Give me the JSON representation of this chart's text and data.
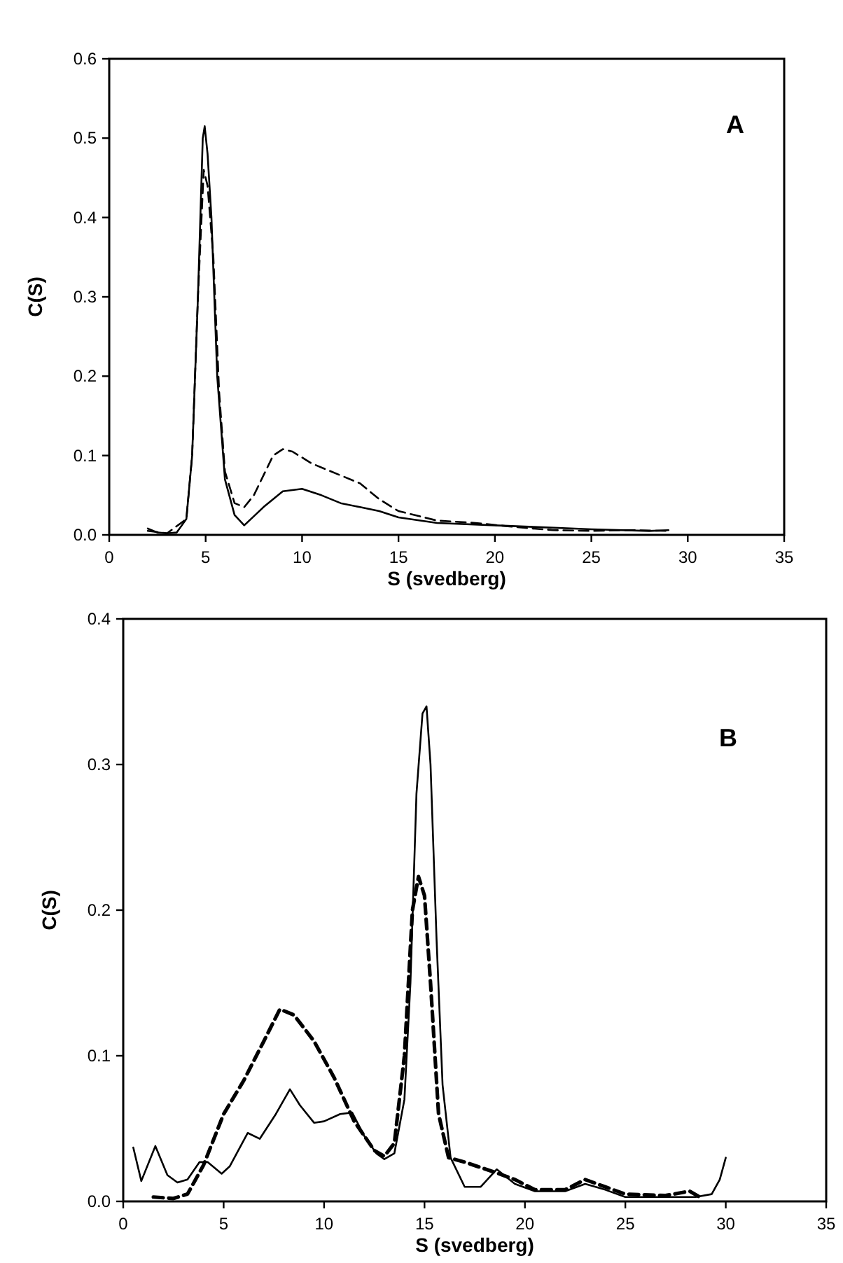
{
  "chart_data": [
    {
      "type": "line",
      "xlabel": "S (svedberg)",
      "ylabel": "C(S)",
      "annotations": [
        "A"
      ],
      "xlim": [
        0,
        35
      ],
      "ylim": [
        0,
        0.6
      ],
      "xticks": [
        0,
        5,
        10,
        15,
        20,
        25,
        30,
        35
      ],
      "yticks": [
        {
          "value": 0,
          "label": "0.0"
        },
        0.1,
        0.2,
        0.3,
        0.4,
        0.5,
        0.6
      ],
      "grid": false,
      "marker": "none",
      "series": [
        {
          "color": "#000000",
          "line_style": "solid",
          "x": [
            2,
            2.5,
            3,
            3.5,
            4,
            4.3,
            4.6,
            4.85,
            4.95,
            5.1,
            5.3,
            5.6,
            6,
            6.5,
            7,
            8,
            9,
            10,
            11,
            12,
            13,
            14,
            15,
            17,
            20,
            22,
            25,
            28,
            29
          ],
          "values": [
            0.008,
            0.003,
            0.002,
            0.003,
            0.02,
            0.1,
            0.3,
            0.5,
            0.515,
            0.48,
            0.4,
            0.2,
            0.07,
            0.025,
            0.012,
            0.035,
            0.055,
            0.058,
            0.05,
            0.04,
            0.035,
            0.03,
            0.022,
            0.015,
            0.012,
            0.01,
            0.007,
            0.005,
            0.006
          ]
        },
        {
          "color": "#000000",
          "line_style": "dashed",
          "x": [
            2,
            3,
            4,
            4.3,
            4.6,
            4.9,
            5.1,
            5.4,
            5.7,
            6,
            6.5,
            7,
            7.5,
            8.5,
            9,
            9.5,
            10.5,
            12,
            13,
            14,
            15,
            17,
            19,
            21,
            23,
            25,
            27,
            29
          ],
          "values": [
            0.005,
            0.002,
            0.02,
            0.1,
            0.3,
            0.46,
            0.44,
            0.35,
            0.18,
            0.08,
            0.04,
            0.035,
            0.05,
            0.1,
            0.108,
            0.105,
            0.09,
            0.075,
            0.065,
            0.045,
            0.03,
            0.018,
            0.015,
            0.01,
            0.006,
            0.005,
            0.006,
            0.005
          ]
        }
      ]
    },
    {
      "type": "line",
      "xlabel": "S (svedberg)",
      "ylabel": "C(S)",
      "annotations": [
        "B"
      ],
      "xlim": [
        0,
        35
      ],
      "ylim": [
        0,
        0.4
      ],
      "xticks": [
        0,
        5,
        10,
        15,
        20,
        25,
        30,
        35
      ],
      "yticks": [
        {
          "value": 0,
          "label": "0.0"
        },
        0.1,
        0.2,
        0.3,
        0.4
      ],
      "grid": false,
      "marker": "none",
      "series": [
        {
          "color": "#000000",
          "line_style": "solid",
          "x": [
            0.5,
            0.9,
            1.6,
            2.2,
            2.7,
            3.2,
            3.8,
            4.2,
            4.9,
            5.3,
            6.2,
            6.8,
            7.6,
            8.3,
            8.8,
            9.5,
            10,
            10.8,
            11.4,
            12,
            12.6,
            13,
            13.5,
            14,
            14.3,
            14.6,
            14.9,
            15.1,
            15.3,
            15.6,
            15.9,
            16.3,
            17,
            17.8,
            18.6,
            19.5,
            20.5,
            22,
            23,
            24,
            25,
            27,
            28.5,
            29.3,
            29.7,
            30
          ],
          "values": [
            0.037,
            0.014,
            0.038,
            0.018,
            0.013,
            0.015,
            0.027,
            0.027,
            0.019,
            0.024,
            0.047,
            0.043,
            0.06,
            0.077,
            0.066,
            0.054,
            0.055,
            0.06,
            0.061,
            0.045,
            0.033,
            0.029,
            0.033,
            0.07,
            0.15,
            0.28,
            0.335,
            0.34,
            0.3,
            0.18,
            0.08,
            0.03,
            0.01,
            0.01,
            0.022,
            0.012,
            0.007,
            0.007,
            0.012,
            0.008,
            0.003,
            0.003,
            0.003,
            0.005,
            0.015,
            0.03
          ]
        },
        {
          "color": "#000000",
          "line_style": "dashed",
          "x": [
            1.5,
            2.5,
            3.2,
            4,
            5,
            6,
            7,
            7.8,
            8.5,
            9.5,
            10.5,
            11.5,
            12.5,
            13,
            13.5,
            14,
            14.4,
            14.7,
            15,
            15.3,
            15.7,
            16.2,
            17,
            18.5,
            19.5,
            20.5,
            22,
            23,
            24,
            25,
            27,
            28.2,
            28.7
          ],
          "values": [
            0.003,
            0.002,
            0.005,
            0.025,
            0.06,
            0.083,
            0.11,
            0.132,
            0.128,
            0.11,
            0.085,
            0.055,
            0.035,
            0.031,
            0.04,
            0.1,
            0.2,
            0.223,
            0.21,
            0.15,
            0.06,
            0.03,
            0.027,
            0.02,
            0.015,
            0.008,
            0.008,
            0.015,
            0.01,
            0.005,
            0.004,
            0.007,
            0.003
          ]
        }
      ]
    }
  ]
}
